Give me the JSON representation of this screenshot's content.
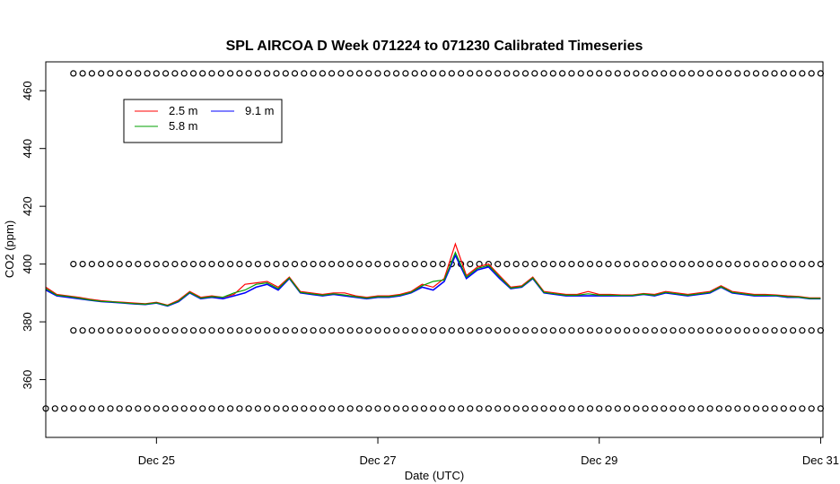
{
  "chart_data": {
    "type": "line",
    "title": "SPL AIRCOA D  Week 071224 to 071230  Calibrated Timeseries",
    "xlabel": "Date (UTC)",
    "ylabel": "CO2 (ppm)",
    "x_unit": "days",
    "xlim": [
      "2007-12-24 00:00",
      "2007-12-31 00:30"
    ],
    "ylim": [
      340,
      470
    ],
    "x_ticks": [
      {
        "x": "2007-12-25 00:00",
        "label": "Dec 25"
      },
      {
        "x": "2007-12-27 00:00",
        "label": "Dec 27"
      },
      {
        "x": "2007-12-29 00:00",
        "label": "Dec 29"
      },
      {
        "x": "2007-12-31 00:00",
        "label": "Dec 31"
      }
    ],
    "y_ticks": [
      360,
      380,
      400,
      420,
      440,
      460
    ],
    "y_tick_labels": [
      "360",
      "380",
      "400",
      "420",
      "440",
      "460"
    ],
    "grid": false,
    "legend": {
      "position": "top-left",
      "entries": [
        {
          "name": "2.5 m",
          "color": "#ff0000"
        },
        {
          "name": "5.8 m",
          "color": "#00a000"
        },
        {
          "name": "9.1 m",
          "color": "#0000ff"
        }
      ]
    },
    "calibration_series": [
      {
        "name": "high standard",
        "y": 466,
        "marker": "circle",
        "x_start": "2007-12-24 06:00",
        "x_end": "2007-12-31 00:00",
        "interval_hours": 2
      },
      {
        "name": "mid-high standard",
        "y": 400,
        "marker": "circle",
        "x_start": "2007-12-24 06:00",
        "x_end": "2007-12-31 00:00",
        "interval_hours": 2
      },
      {
        "name": "mid-low standard",
        "y": 377,
        "marker": "circle",
        "x_start": "2007-12-24 06:00",
        "x_end": "2007-12-31 00:00",
        "interval_hours": 2
      },
      {
        "name": "low standard",
        "y": 350,
        "marker": "circle",
        "x_start": "2007-12-24 00:00",
        "x_end": "2007-12-31 00:00",
        "interval_hours": 2
      }
    ],
    "series": [
      {
        "name": "9.1 m",
        "color": "#0000ff",
        "points": [
          [
            "2007-12-24 00:00",
            391
          ],
          [
            "2007-12-24 02:24",
            389
          ],
          [
            "2007-12-24 04:48",
            388.5
          ],
          [
            "2007-12-24 07:12",
            388
          ],
          [
            "2007-12-24 09:36",
            387.5
          ],
          [
            "2007-12-24 12:00",
            387
          ],
          [
            "2007-12-24 14:24",
            386.8
          ],
          [
            "2007-12-24 16:48",
            386.5
          ],
          [
            "2007-12-24 19:12",
            386.2
          ],
          [
            "2007-12-24 21:36",
            386
          ],
          [
            "2007-12-25 00:00",
            386.5
          ],
          [
            "2007-12-25 02:24",
            385.5
          ],
          [
            "2007-12-25 04:48",
            387
          ],
          [
            "2007-12-25 07:12",
            390
          ],
          [
            "2007-12-25 09:36",
            388
          ],
          [
            "2007-12-25 12:00",
            388.5
          ],
          [
            "2007-12-25 14:24",
            388
          ],
          [
            "2007-12-25 16:48",
            389
          ],
          [
            "2007-12-25 19:12",
            390
          ],
          [
            "2007-12-25 21:36",
            392
          ],
          [
            "2007-12-26 00:00",
            393
          ],
          [
            "2007-12-26 02:24",
            391
          ],
          [
            "2007-12-26 04:48",
            395
          ],
          [
            "2007-12-26 07:12",
            390
          ],
          [
            "2007-12-26 09:36",
            389.5
          ],
          [
            "2007-12-26 12:00",
            389
          ],
          [
            "2007-12-26 14:24",
            389.5
          ],
          [
            "2007-12-26 16:48",
            389
          ],
          [
            "2007-12-26 19:12",
            388.5
          ],
          [
            "2007-12-26 21:36",
            388
          ],
          [
            "2007-12-27 00:00",
            388.5
          ],
          [
            "2007-12-27 02:24",
            388.5
          ],
          [
            "2007-12-27 04:48",
            389
          ],
          [
            "2007-12-27 07:12",
            390
          ],
          [
            "2007-12-27 09:36",
            392
          ],
          [
            "2007-12-27 12:00",
            391
          ],
          [
            "2007-12-27 14:24",
            394
          ],
          [
            "2007-12-27 16:48",
            403
          ],
          [
            "2007-12-27 19:12",
            395
          ],
          [
            "2007-12-27 21:36",
            398
          ],
          [
            "2007-12-28 00:00",
            399
          ],
          [
            "2007-12-28 02:24",
            395
          ],
          [
            "2007-12-28 04:48",
            391.5
          ],
          [
            "2007-12-28 07:12",
            392
          ],
          [
            "2007-12-28 09:36",
            395
          ],
          [
            "2007-12-28 12:00",
            390
          ],
          [
            "2007-12-28 14:24",
            389.5
          ],
          [
            "2007-12-28 16:48",
            389
          ],
          [
            "2007-12-28 19:12",
            389
          ],
          [
            "2007-12-28 21:36",
            389
          ],
          [
            "2007-12-29 00:00",
            389
          ],
          [
            "2007-12-29 02:24",
            389
          ],
          [
            "2007-12-29 04:48",
            389
          ],
          [
            "2007-12-29 07:12",
            389
          ],
          [
            "2007-12-29 09:36",
            389.5
          ],
          [
            "2007-12-29 12:00",
            389
          ],
          [
            "2007-12-29 14:24",
            390
          ],
          [
            "2007-12-29 16:48",
            389.5
          ],
          [
            "2007-12-29 19:12",
            389
          ],
          [
            "2007-12-29 21:36",
            389.5
          ],
          [
            "2007-12-30 00:00",
            390
          ],
          [
            "2007-12-30 02:24",
            392
          ],
          [
            "2007-12-30 04:48",
            390
          ],
          [
            "2007-12-30 07:12",
            389.5
          ],
          [
            "2007-12-30 09:36",
            389
          ],
          [
            "2007-12-30 12:00",
            389
          ],
          [
            "2007-12-30 14:24",
            389
          ],
          [
            "2007-12-30 16:48",
            388.5
          ],
          [
            "2007-12-30 19:12",
            388.5
          ],
          [
            "2007-12-30 21:36",
            388
          ],
          [
            "2007-12-31 00:00",
            388
          ]
        ]
      },
      {
        "name": "2.5 m",
        "color": "#ff0000",
        "points": [
          [
            "2007-12-24 00:00",
            392
          ],
          [
            "2007-12-24 02:24",
            389.5
          ],
          [
            "2007-12-24 04:48",
            389
          ],
          [
            "2007-12-24 07:12",
            388.5
          ],
          [
            "2007-12-24 09:36",
            387.8
          ],
          [
            "2007-12-24 12:00",
            387.3
          ],
          [
            "2007-12-24 14:24",
            387
          ],
          [
            "2007-12-24 16:48",
            386.8
          ],
          [
            "2007-12-24 19:12",
            386.5
          ],
          [
            "2007-12-24 21:36",
            386.3
          ],
          [
            "2007-12-25 00:00",
            386.8
          ],
          [
            "2007-12-25 02:24",
            385.8
          ],
          [
            "2007-12-25 04:48",
            387.5
          ],
          [
            "2007-12-25 07:12",
            390.5
          ],
          [
            "2007-12-25 09:36",
            388.5
          ],
          [
            "2007-12-25 12:00",
            389
          ],
          [
            "2007-12-25 14:24",
            388.5
          ],
          [
            "2007-12-25 16:48",
            389.5
          ],
          [
            "2007-12-25 19:12",
            393
          ],
          [
            "2007-12-25 21:36",
            393.5
          ],
          [
            "2007-12-26 00:00",
            394
          ],
          [
            "2007-12-26 02:24",
            392
          ],
          [
            "2007-12-26 04:48",
            395.5
          ],
          [
            "2007-12-26 07:12",
            390.5
          ],
          [
            "2007-12-26 09:36",
            390
          ],
          [
            "2007-12-26 12:00",
            389.5
          ],
          [
            "2007-12-26 14:24",
            390
          ],
          [
            "2007-12-26 16:48",
            390
          ],
          [
            "2007-12-26 19:12",
            389
          ],
          [
            "2007-12-26 21:36",
            388.5
          ],
          [
            "2007-12-27 00:00",
            389
          ],
          [
            "2007-12-27 02:24",
            389
          ],
          [
            "2007-12-27 04:48",
            389.5
          ],
          [
            "2007-12-27 07:12",
            390.5
          ],
          [
            "2007-12-27 09:36",
            393
          ],
          [
            "2007-12-27 12:00",
            392
          ],
          [
            "2007-12-27 14:24",
            395
          ],
          [
            "2007-12-27 16:48",
            407
          ],
          [
            "2007-12-27 19:12",
            396
          ],
          [
            "2007-12-27 21:36",
            399
          ],
          [
            "2007-12-28 00:00",
            400
          ],
          [
            "2007-12-28 02:24",
            396
          ],
          [
            "2007-12-28 04:48",
            392
          ],
          [
            "2007-12-28 07:12",
            392.5
          ],
          [
            "2007-12-28 09:36",
            395.5
          ],
          [
            "2007-12-28 12:00",
            390.5
          ],
          [
            "2007-12-28 14:24",
            390
          ],
          [
            "2007-12-28 16:48",
            389.5
          ],
          [
            "2007-12-28 19:12",
            389.5
          ],
          [
            "2007-12-28 21:36",
            390.5
          ],
          [
            "2007-12-29 00:00",
            389.5
          ],
          [
            "2007-12-29 02:24",
            389.5
          ],
          [
            "2007-12-29 04:48",
            389.3
          ],
          [
            "2007-12-29 07:12",
            389.3
          ],
          [
            "2007-12-29 09:36",
            389.8
          ],
          [
            "2007-12-29 12:00",
            389.5
          ],
          [
            "2007-12-29 14:24",
            390.5
          ],
          [
            "2007-12-29 16:48",
            390
          ],
          [
            "2007-12-29 19:12",
            389.5
          ],
          [
            "2007-12-29 21:36",
            390
          ],
          [
            "2007-12-30 00:00",
            390.5
          ],
          [
            "2007-12-30 02:24",
            392.5
          ],
          [
            "2007-12-30 04:48",
            390.5
          ],
          [
            "2007-12-30 07:12",
            390
          ],
          [
            "2007-12-30 09:36",
            389.5
          ],
          [
            "2007-12-30 12:00",
            389.5
          ],
          [
            "2007-12-30 14:24",
            389.3
          ],
          [
            "2007-12-30 16:48",
            389
          ],
          [
            "2007-12-30 19:12",
            388.8
          ],
          [
            "2007-12-30 21:36",
            388.3
          ],
          [
            "2007-12-31 00:00",
            388.3
          ]
        ]
      },
      {
        "name": "5.8 m",
        "color": "#00a000",
        "points": [
          [
            "2007-12-24 00:00",
            391.5
          ],
          [
            "2007-12-24 02:24",
            389.2
          ],
          [
            "2007-12-24 04:48",
            388.8
          ],
          [
            "2007-12-24 07:12",
            388.2
          ],
          [
            "2007-12-24 09:36",
            387.6
          ],
          [
            "2007-12-24 12:00",
            387.1
          ],
          [
            "2007-12-24 14:24",
            386.9
          ],
          [
            "2007-12-24 16:48",
            386.6
          ],
          [
            "2007-12-24 19:12",
            386.3
          ],
          [
            "2007-12-24 21:36",
            386.1
          ],
          [
            "2007-12-25 00:00",
            386.6
          ],
          [
            "2007-12-25 02:24",
            385.6
          ],
          [
            "2007-12-25 04:48",
            387.2
          ],
          [
            "2007-12-25 07:12",
            390.2
          ],
          [
            "2007-12-25 09:36",
            388.2
          ],
          [
            "2007-12-25 12:00",
            388.7
          ],
          [
            "2007-12-25 14:24",
            388.5
          ],
          [
            "2007-12-25 16:48",
            390
          ],
          [
            "2007-12-25 19:12",
            391
          ],
          [
            "2007-12-25 21:36",
            393
          ],
          [
            "2007-12-26 00:00",
            393.5
          ],
          [
            "2007-12-26 02:24",
            391.5
          ],
          [
            "2007-12-26 04:48",
            395.2
          ],
          [
            "2007-12-26 07:12",
            390.2
          ],
          [
            "2007-12-26 09:36",
            389.7
          ],
          [
            "2007-12-26 12:00",
            389.2
          ],
          [
            "2007-12-26 14:24",
            389.7
          ],
          [
            "2007-12-26 16:48",
            389.3
          ],
          [
            "2007-12-26 19:12",
            388.7
          ],
          [
            "2007-12-26 21:36",
            388.2
          ],
          [
            "2007-12-27 00:00",
            388.7
          ],
          [
            "2007-12-27 02:24",
            388.7
          ],
          [
            "2007-12-27 04:48",
            389.2
          ],
          [
            "2007-12-27 07:12",
            390.2
          ],
          [
            "2007-12-27 09:36",
            392.5
          ],
          [
            "2007-12-27 12:00",
            394
          ],
          [
            "2007-12-27 14:24",
            394.5
          ],
          [
            "2007-12-27 16:48",
            404
          ],
          [
            "2007-12-27 19:12",
            395.5
          ],
          [
            "2007-12-27 21:36",
            398.5
          ],
          [
            "2007-12-28 00:00",
            399.5
          ],
          [
            "2007-12-28 02:24",
            395.5
          ],
          [
            "2007-12-28 04:48",
            391.7
          ],
          [
            "2007-12-28 07:12",
            392.2
          ],
          [
            "2007-12-28 09:36",
            395.2
          ],
          [
            "2007-12-28 12:00",
            390.2
          ],
          [
            "2007-12-28 14:24",
            389.7
          ],
          [
            "2007-12-28 16:48",
            389.2
          ],
          [
            "2007-12-28 19:12",
            389.2
          ],
          [
            "2007-12-28 21:36",
            389.7
          ],
          [
            "2007-12-29 00:00",
            389.2
          ],
          [
            "2007-12-29 02:24",
            389.2
          ],
          [
            "2007-12-29 04:48",
            389.1
          ],
          [
            "2007-12-29 07:12",
            389.1
          ],
          [
            "2007-12-29 09:36",
            389.6
          ],
          [
            "2007-12-29 12:00",
            389.2
          ],
          [
            "2007-12-29 14:24",
            390.2
          ],
          [
            "2007-12-29 16:48",
            389.7
          ],
          [
            "2007-12-29 19:12",
            389.2
          ],
          [
            "2007-12-29 21:36",
            389.7
          ],
          [
            "2007-12-30 00:00",
            390.2
          ],
          [
            "2007-12-30 02:24",
            392.2
          ],
          [
            "2007-12-30 04:48",
            390.2
          ],
          [
            "2007-12-30 07:12",
            389.7
          ],
          [
            "2007-12-30 09:36",
            389.2
          ],
          [
            "2007-12-30 12:00",
            389.2
          ],
          [
            "2007-12-30 14:24",
            389.1
          ],
          [
            "2007-12-30 16:48",
            388.7
          ],
          [
            "2007-12-30 19:12",
            388.6
          ],
          [
            "2007-12-30 21:36",
            388.1
          ],
          [
            "2007-12-31 00:00",
            388.1
          ]
        ]
      }
    ]
  }
}
